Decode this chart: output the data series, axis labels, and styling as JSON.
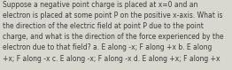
{
  "text": "Suppose a negative point charge is placed at x=0 and an\nelectron is placed at some point P on the positive x-axis. What is\nthe direction of the electric field at point P due to the point\ncharge, and what is the direction of the force experienced by the\nelectron due to that field? a. E along -x; F along +x b. E along\n+x; F along -x c. E along -x; F along -x d. E along +x; F along +x",
  "font_size": 5.5,
  "text_color": "#3a3a3a",
  "background_color": "#d8d8d0",
  "font_family": "DejaVu Sans"
}
